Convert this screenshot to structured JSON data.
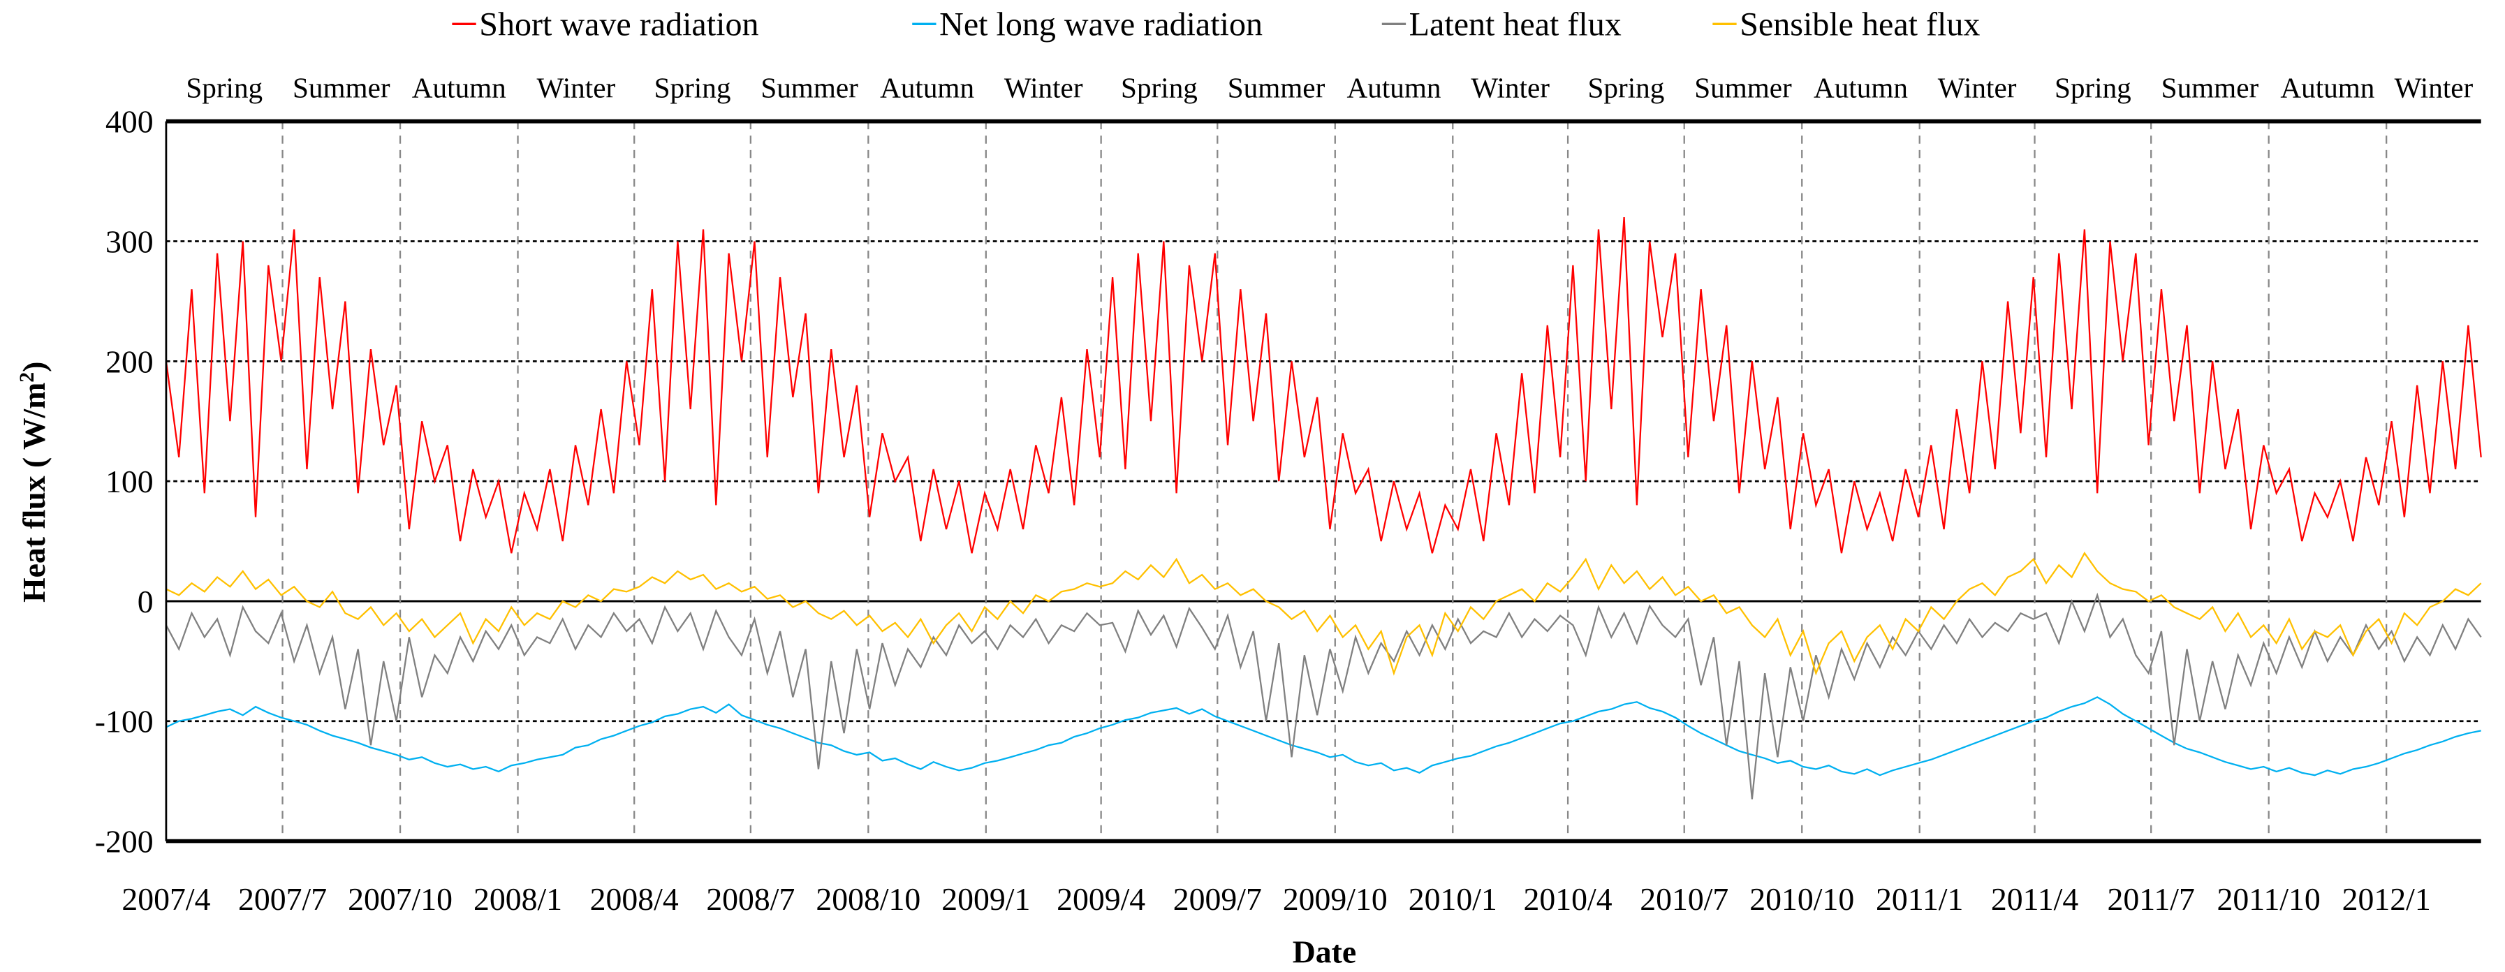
{
  "chart_data": {
    "type": "line",
    "title": "",
    "xlabel": "Date",
    "ylabel": "Heat flux ( W/m",
    "ylabel_sup": "2",
    "ylabel_close": ")",
    "ylim": [
      -200,
      400
    ],
    "yticks": [
      "400",
      "300",
      "200",
      "100",
      "0",
      "-100",
      "-200"
    ],
    "ytick_values": [
      400,
      300,
      200,
      100,
      0,
      -100,
      -200
    ],
    "x_start": "2007/4/1",
    "x_step_days": 10,
    "x_range_days": [
      0,
      1810
    ],
    "xticks": [
      "2007/4",
      "2007/7",
      "2007/10",
      "2008/1",
      "2008/4",
      "2008/7",
      "2008/10",
      "2009/1",
      "2009/4",
      "2009/7",
      "2009/10",
      "2010/1",
      "2010/4",
      "2010/7",
      "2010/10",
      "2011/1",
      "2011/4",
      "2011/7",
      "2011/10",
      "2012/1"
    ],
    "xtick_days": [
      0,
      91,
      183,
      275,
      366,
      457,
      549,
      641,
      731,
      822,
      914,
      1006,
      1096,
      1187,
      1279,
      1371,
      1461,
      1552,
      1644,
      1736
    ],
    "seasons": [
      "Spring",
      "Summer",
      "Autumn",
      "Winter",
      "Spring",
      "Summer",
      "Autumn",
      "Winter",
      "Spring",
      "Summer",
      "Autumn",
      "Winter",
      "Spring",
      "Summer",
      "Autumn",
      "Winter",
      "Spring",
      "Summer",
      "Autumn",
      "Winter"
    ],
    "grid": {
      "horizontal": "dotted",
      "vertical": "dashed"
    },
    "legend_position": "top",
    "series": [
      {
        "name": "Short wave radiation",
        "color": "#ff0000",
        "values": [
          200,
          120,
          260,
          90,
          290,
          150,
          300,
          70,
          280,
          200,
          310,
          110,
          270,
          160,
          250,
          90,
          210,
          130,
          180,
          60,
          150,
          100,
          130,
          50,
          110,
          70,
          100,
          40,
          90,
          60,
          110,
          50,
          130,
          80,
          160,
          90,
          200,
          130,
          260,
          100,
          300,
          160,
          310,
          80,
          290,
          200,
          300,
          120,
          270,
          170,
          240,
          90,
          210,
          120,
          180,
          70,
          140,
          100,
          120,
          50,
          110,
          60,
          100,
          40,
          90,
          60,
          110,
          60,
          130,
          90,
          170,
          80,
          210,
          120,
          270,
          110,
          290,
          150,
          300,
          90,
          280,
          200,
          290,
          130,
          260,
          150,
          240,
          100,
          200,
          120,
          170,
          60,
          140,
          90,
          110,
          50,
          100,
          60,
          90,
          40,
          80,
          60,
          110,
          50,
          140,
          80,
          190,
          90,
          230,
          120,
          280,
          100,
          310,
          160,
          320,
          80,
          300,
          220,
          290,
          120,
          260,
          150,
          230,
          90,
          200,
          110,
          170,
          60,
          140,
          80,
          110,
          40,
          100,
          60,
          90,
          50,
          110,
          70,
          130,
          60,
          160,
          90,
          200,
          110,
          250,
          140,
          270,
          120,
          290,
          160,
          310,
          90,
          300,
          200,
          290,
          130,
          260,
          150,
          230,
          90,
          200,
          110,
          160,
          60,
          130,
          90,
          110,
          50,
          90,
          70,
          100,
          50,
          120,
          80,
          150,
          70,
          180,
          90,
          200,
          110,
          230,
          120
        ]
      },
      {
        "name": "Net long  wave radiation",
        "color": "#00b0f0",
        "values": [
          -105,
          -100,
          -98,
          -95,
          -92,
          -90,
          -95,
          -88,
          -93,
          -97,
          -100,
          -103,
          -108,
          -112,
          -115,
          -118,
          -122,
          -125,
          -128,
          -132,
          -130,
          -135,
          -138,
          -136,
          -140,
          -138,
          -142,
          -137,
          -135,
          -132,
          -130,
          -128,
          -122,
          -120,
          -115,
          -112,
          -108,
          -104,
          -101,
          -96,
          -94,
          -90,
          -88,
          -93,
          -86,
          -95,
          -99,
          -103,
          -106,
          -110,
          -114,
          -118,
          -120,
          -125,
          -128,
          -126,
          -133,
          -131,
          -136,
          -140,
          -134,
          -138,
          -141,
          -139,
          -135,
          -133,
          -130,
          -127,
          -124,
          -120,
          -118,
          -113,
          -110,
          -106,
          -103,
          -99,
          -97,
          -93,
          -91,
          -89,
          -94,
          -90,
          -96,
          -100,
          -104,
          -108,
          -112,
          -116,
          -120,
          -123,
          -126,
          -130,
          -128,
          -134,
          -137,
          -135,
          -141,
          -139,
          -143,
          -137,
          -134,
          -131,
          -129,
          -125,
          -121,
          -118,
          -114,
          -110,
          -106,
          -102,
          -100,
          -96,
          -92,
          -90,
          -86,
          -84,
          -89,
          -92,
          -97,
          -104,
          -110,
          -115,
          -120,
          -125,
          -128,
          -131,
          -135,
          -133,
          -138,
          -140,
          -137,
          -142,
          -144,
          -140,
          -145,
          -141,
          -138,
          -135,
          -132,
          -128,
          -124,
          -120,
          -116,
          -112,
          -108,
          -104,
          -100,
          -97,
          -92,
          -88,
          -85,
          -80,
          -86,
          -94,
          -100,
          -106,
          -112,
          -118,
          -123,
          -126,
          -130,
          -134,
          -137,
          -140,
          -138,
          -142,
          -139,
          -143,
          -145,
          -141,
          -144,
          -140,
          -138,
          -135,
          -131,
          -127,
          -124,
          -120,
          -117,
          -113,
          -110,
          -108
        ]
      },
      {
        "name": "Latent heat flux",
        "color": "#808080",
        "values": [
          -20,
          -40,
          -10,
          -30,
          -15,
          -45,
          -5,
          -25,
          -35,
          -10,
          -50,
          -20,
          -60,
          -30,
          -90,
          -40,
          -120,
          -50,
          -100,
          -30,
          -80,
          -45,
          -60,
          -30,
          -50,
          -25,
          -40,
          -20,
          -45,
          -30,
          -35,
          -15,
          -40,
          -20,
          -30,
          -10,
          -25,
          -15,
          -35,
          -5,
          -25,
          -10,
          -40,
          -8,
          -30,
          -45,
          -15,
          -60,
          -25,
          -80,
          -40,
          -140,
          -50,
          -110,
          -40,
          -90,
          -35,
          -70,
          -40,
          -55,
          -30,
          -45,
          -20,
          -35,
          -25,
          -40,
          -20,
          -30,
          -15,
          -35,
          -20,
          -25,
          -10,
          -20,
          -18,
          -42,
          -8,
          -28,
          -12,
          -38,
          -6,
          -22,
          -40,
          -12,
          -55,
          -25,
          -100,
          -35,
          -130,
          -45,
          -95,
          -40,
          -75,
          -30,
          -60,
          -35,
          -50,
          -25,
          -45,
          -20,
          -40,
          -15,
          -35,
          -25,
          -30,
          -10,
          -30,
          -15,
          -25,
          -12,
          -20,
          -45,
          -5,
          -30,
          -10,
          -35,
          -4,
          -20,
          -30,
          -15,
          -70,
          -30,
          -120,
          -50,
          -165,
          -60,
          -130,
          -55,
          -100,
          -45,
          -80,
          -40,
          -65,
          -35,
          -55,
          -30,
          -45,
          -25,
          -40,
          -20,
          -35,
          -15,
          -30,
          -18,
          -25,
          -10,
          -15,
          -10,
          -35,
          0,
          -25,
          5,
          -30,
          -15,
          -45,
          -60,
          -25,
          -120,
          -40,
          -100,
          -50,
          -90,
          -45,
          -70,
          -35,
          -60,
          -30,
          -55,
          -25,
          -50,
          -30,
          -45,
          -20,
          -40,
          -25,
          -50,
          -30,
          -45,
          -20,
          -40,
          -15,
          -30
        ]
      },
      {
        "name": "Sensible heat flux",
        "color": "#ffc000",
        "values": [
          10,
          5,
          15,
          8,
          20,
          12,
          25,
          10,
          18,
          5,
          12,
          0,
          -5,
          8,
          -10,
          -15,
          -5,
          -20,
          -10,
          -25,
          -15,
          -30,
          -20,
          -10,
          -35,
          -15,
          -25,
          -5,
          -20,
          -10,
          -15,
          0,
          -5,
          5,
          0,
          10,
          8,
          12,
          20,
          15,
          25,
          18,
          22,
          10,
          15,
          8,
          12,
          2,
          5,
          -5,
          0,
          -10,
          -15,
          -8,
          -20,
          -12,
          -25,
          -18,
          -30,
          -15,
          -35,
          -20,
          -10,
          -25,
          -5,
          -15,
          0,
          -10,
          5,
          0,
          8,
          10,
          15,
          12,
          15,
          25,
          18,
          30,
          20,
          35,
          15,
          22,
          10,
          15,
          5,
          10,
          0,
          -5,
          -15,
          -8,
          -25,
          -12,
          -30,
          -20,
          -40,
          -25,
          -60,
          -30,
          -20,
          -45,
          -10,
          -25,
          -5,
          -15,
          0,
          5,
          10,
          0,
          15,
          8,
          20,
          35,
          10,
          30,
          15,
          25,
          10,
          20,
          5,
          12,
          0,
          5,
          -10,
          -5,
          -20,
          -30,
          -15,
          -45,
          -25,
          -60,
          -35,
          -25,
          -50,
          -30,
          -20,
          -40,
          -15,
          -25,
          -5,
          -15,
          0,
          10,
          15,
          5,
          20,
          25,
          35,
          15,
          30,
          20,
          40,
          25,
          15,
          10,
          8,
          0,
          5,
          -5,
          -10,
          -15,
          -5,
          -25,
          -10,
          -30,
          -20,
          -35,
          -15,
          -40,
          -25,
          -30,
          -20,
          -45,
          -25,
          -15,
          -35,
          -10,
          -20,
          -5,
          0,
          10,
          5,
          15
        ]
      }
    ]
  }
}
